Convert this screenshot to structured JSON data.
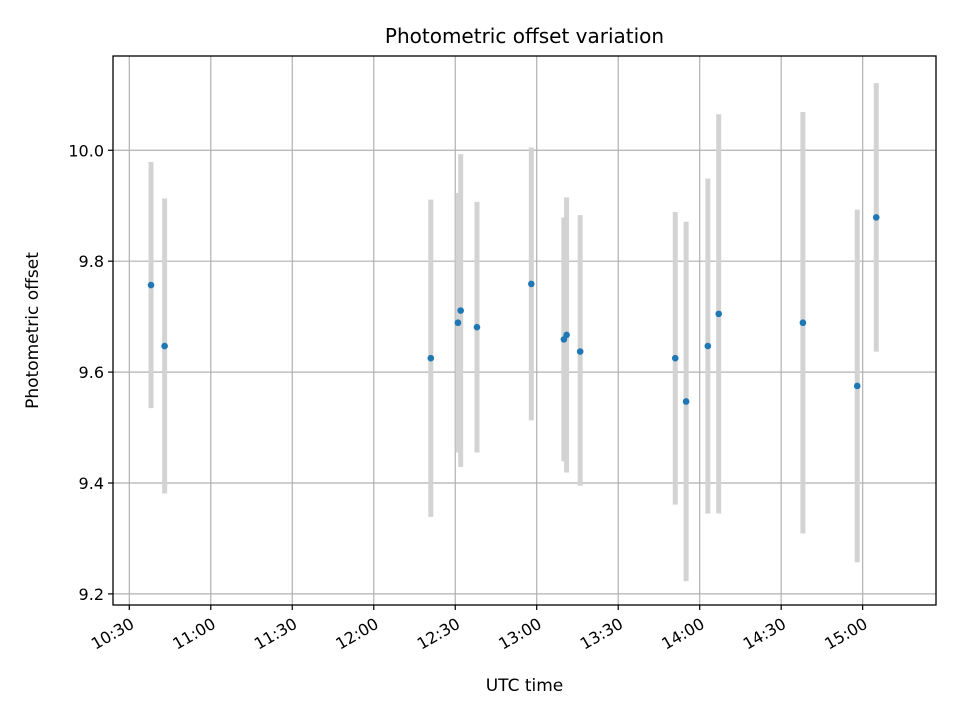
{
  "chart_data": {
    "type": "scatter",
    "title": "Photometric offset variation",
    "xlabel": "UTC time",
    "ylabel": "Photometric offset",
    "x_ticks": [
      "10:30",
      "11:00",
      "11:30",
      "12:00",
      "12:30",
      "13:00",
      "13:30",
      "14:00",
      "14:30",
      "15:00"
    ],
    "y_ticks": [
      "9.2",
      "9.4",
      "9.6",
      "9.8",
      "10.0"
    ],
    "xlim": [
      "10:24",
      "15:27"
    ],
    "ylim": [
      9.18,
      10.17
    ],
    "grid": true,
    "series": [
      {
        "marker_color": "#1f77b4",
        "errorbar_color": "#d3d3d3",
        "points": [
          {
            "x": "10:38",
            "y": 9.757,
            "low": 9.535,
            "high": 9.979
          },
          {
            "x": "10:43",
            "y": 9.647,
            "low": 9.381,
            "high": 9.913
          },
          {
            "x": "12:21",
            "y": 9.625,
            "low": 9.339,
            "high": 9.911
          },
          {
            "x": "12:31",
            "y": 9.689,
            "low": 9.455,
            "high": 9.923
          },
          {
            "x": "12:32",
            "y": 9.711,
            "low": 9.429,
            "high": 9.993
          },
          {
            "x": "12:38",
            "y": 9.681,
            "low": 9.455,
            "high": 9.907
          },
          {
            "x": "12:58",
            "y": 9.759,
            "low": 9.513,
            "high": 10.005
          },
          {
            "x": "13:10",
            "y": 9.659,
            "low": 9.439,
            "high": 9.879
          },
          {
            "x": "13:11",
            "y": 9.667,
            "low": 9.419,
            "high": 9.915
          },
          {
            "x": "13:16",
            "y": 9.637,
            "low": 9.395,
            "high": 9.883
          },
          {
            "x": "13:51",
            "y": 9.625,
            "low": 9.361,
            "high": 9.889
          },
          {
            "x": "13:55",
            "y": 9.547,
            "low": 9.223,
            "high": 9.871
          },
          {
            "x": "14:03",
            "y": 9.647,
            "low": 9.345,
            "high": 9.949
          },
          {
            "x": "14:07",
            "y": 9.705,
            "low": 9.345,
            "high": 10.065
          },
          {
            "x": "14:38",
            "y": 9.689,
            "low": 9.309,
            "high": 10.069
          },
          {
            "x": "14:58",
            "y": 9.575,
            "low": 9.257,
            "high": 9.893
          },
          {
            "x": "15:05",
            "y": 9.879,
            "low": 9.637,
            "high": 10.121
          }
        ]
      }
    ]
  }
}
